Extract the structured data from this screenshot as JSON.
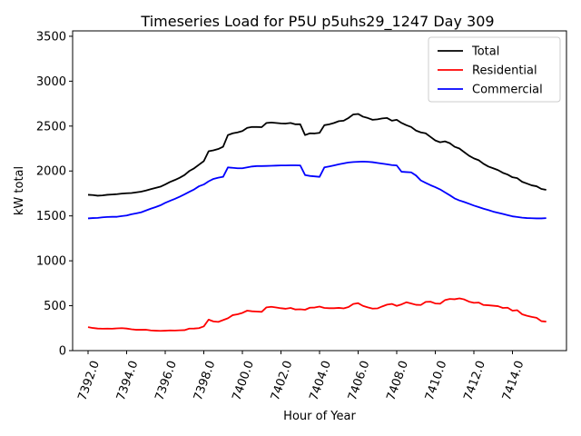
{
  "chart_data": {
    "type": "line",
    "title": "Timeseries Load for P5U p5uhs29_1247  Day 309",
    "xlabel": "Hour of Year",
    "ylabel": "kW total",
    "xlim": [
      7391.2,
      7416.8
    ],
    "ylim": [
      0,
      3560
    ],
    "x_ticks": [
      7392.0,
      7394.0,
      7396.0,
      7398.0,
      7400.0,
      7402.0,
      7404.0,
      7406.0,
      7408.0,
      7410.0,
      7412.0,
      7414.0
    ],
    "x_tick_labels": [
      "7392.0",
      "7394.0",
      "7396.0",
      "7398.0",
      "7400.0",
      "7402.0",
      "7404.0",
      "7406.0",
      "7408.0",
      "7410.0",
      "7412.0",
      "7414.0"
    ],
    "y_ticks": [
      0,
      500,
      1000,
      1500,
      2000,
      2500,
      3000,
      3500
    ],
    "y_tick_labels": [
      "0",
      "500",
      "1000",
      "1500",
      "2000",
      "2500",
      "3000",
      "3500"
    ],
    "legend_position": "top-right",
    "series": [
      {
        "name": "Total",
        "color": "#000000",
        "x": [
          7392.0,
          7392.25,
          7392.5,
          7392.75,
          7393.0,
          7393.25,
          7393.5,
          7393.75,
          7394.0,
          7394.25,
          7394.5,
          7394.75,
          7395.0,
          7395.25,
          7395.5,
          7395.75,
          7396.0,
          7396.25,
          7396.5,
          7396.75,
          7397.0,
          7397.25,
          7397.5,
          7397.75,
          7398.0,
          7398.25,
          7398.5,
          7398.75,
          7399.0,
          7399.25,
          7399.5,
          7399.75,
          7400.0,
          7400.25,
          7400.5,
          7400.75,
          7401.0,
          7401.25,
          7401.5,
          7401.75,
          7402.0,
          7402.25,
          7402.5,
          7402.75,
          7403.0,
          7403.25,
          7403.5,
          7403.75,
          7404.0,
          7404.25,
          7404.5,
          7404.75,
          7405.0,
          7405.25,
          7405.5,
          7405.75,
          7406.0,
          7406.25,
          7406.5,
          7406.75,
          7407.0,
          7407.25,
          7407.5,
          7407.75,
          7408.0,
          7408.25,
          7408.5,
          7408.75,
          7409.0,
          7409.25,
          7409.5,
          7409.75,
          7410.0,
          7410.25,
          7410.5,
          7410.75,
          7411.0,
          7411.25,
          7411.5,
          7411.75,
          7412.0,
          7412.25,
          7412.5,
          7412.75,
          7413.0,
          7413.25,
          7413.5,
          7413.75,
          7414.0,
          7414.25,
          7414.5,
          7414.75,
          7415.0,
          7415.25,
          7415.5,
          7415.75
        ],
        "values": [
          1735,
          1732,
          1725,
          1728,
          1735,
          1738,
          1742,
          1748,
          1752,
          1755,
          1762,
          1770,
          1782,
          1798,
          1812,
          1825,
          1850,
          1878,
          1900,
          1925,
          1955,
          2000,
          2030,
          2070,
          2110,
          2220,
          2230,
          2245,
          2270,
          2400,
          2420,
          2430,
          2445,
          2480,
          2490,
          2490,
          2488,
          2535,
          2540,
          2535,
          2530,
          2528,
          2535,
          2520,
          2520,
          2400,
          2420,
          2418,
          2425,
          2510,
          2520,
          2535,
          2555,
          2560,
          2590,
          2630,
          2635,
          2605,
          2590,
          2570,
          2575,
          2585,
          2590,
          2560,
          2570,
          2535,
          2510,
          2490,
          2450,
          2430,
          2420,
          2380,
          2340,
          2320,
          2330,
          2310,
          2270,
          2250,
          2210,
          2170,
          2140,
          2120,
          2080,
          2050,
          2030,
          2010,
          1980,
          1960,
          1930,
          1920,
          1880,
          1860,
          1840,
          1830,
          1800,
          1790
        ]
      },
      {
        "name": "Residential",
        "color": "#ff0000",
        "x": [
          7392.0,
          7392.25,
          7392.5,
          7392.75,
          7393.0,
          7393.25,
          7393.5,
          7393.75,
          7394.0,
          7394.25,
          7394.5,
          7394.75,
          7395.0,
          7395.25,
          7395.5,
          7395.75,
          7396.0,
          7396.25,
          7396.5,
          7396.75,
          7397.0,
          7397.25,
          7397.5,
          7397.75,
          7398.0,
          7398.25,
          7398.5,
          7398.75,
          7399.0,
          7399.25,
          7399.5,
          7399.75,
          7400.0,
          7400.25,
          7400.5,
          7400.75,
          7401.0,
          7401.25,
          7401.5,
          7401.75,
          7402.0,
          7402.25,
          7402.5,
          7402.75,
          7403.0,
          7403.25,
          7403.5,
          7403.75,
          7404.0,
          7404.25,
          7404.5,
          7404.75,
          7405.0,
          7405.25,
          7405.5,
          7405.75,
          7406.0,
          7406.25,
          7406.5,
          7406.75,
          7407.0,
          7407.25,
          7407.5,
          7407.75,
          7408.0,
          7408.25,
          7408.5,
          7408.75,
          7409.0,
          7409.25,
          7409.5,
          7409.75,
          7410.0,
          7410.25,
          7410.5,
          7410.75,
          7411.0,
          7411.25,
          7411.5,
          7411.75,
          7412.0,
          7412.25,
          7412.5,
          7412.75,
          7413.0,
          7413.25,
          7413.5,
          7413.75,
          7414.0,
          7414.25,
          7414.5,
          7414.75,
          7415.0,
          7415.25,
          7415.5,
          7415.75
        ],
        "values": [
          262,
          252,
          246,
          244,
          245,
          244,
          248,
          250,
          246,
          238,
          232,
          232,
          233,
          225,
          222,
          220,
          222,
          225,
          224,
          226,
          228,
          245,
          246,
          250,
          270,
          345,
          325,
          320,
          340,
          360,
          395,
          405,
          420,
          445,
          438,
          435,
          432,
          482,
          488,
          480,
          472,
          466,
          475,
          458,
          460,
          455,
          478,
          480,
          490,
          475,
          472,
          472,
          476,
          470,
          485,
          520,
          528,
          498,
          482,
          468,
          470,
          492,
          512,
          520,
          498,
          515,
          538,
          525,
          510,
          508,
          542,
          545,
          525,
          522,
          562,
          575,
          572,
          582,
          570,
          545,
          532,
          535,
          508,
          505,
          500,
          495,
          475,
          478,
          445,
          450,
          405,
          388,
          375,
          365,
          328,
          323
        ]
      },
      {
        "name": "Commercial",
        "color": "#0000ff",
        "x": [
          7392.0,
          7392.25,
          7392.5,
          7392.75,
          7393.0,
          7393.25,
          7393.5,
          7393.75,
          7394.0,
          7394.25,
          7394.5,
          7394.75,
          7395.0,
          7395.25,
          7395.5,
          7395.75,
          7396.0,
          7396.25,
          7396.5,
          7396.75,
          7397.0,
          7397.25,
          7397.5,
          7397.75,
          7398.0,
          7398.25,
          7398.5,
          7398.75,
          7399.0,
          7399.25,
          7399.5,
          7399.75,
          7400.0,
          7400.25,
          7400.5,
          7400.75,
          7401.0,
          7401.25,
          7401.5,
          7401.75,
          7402.0,
          7402.25,
          7402.5,
          7402.75,
          7403.0,
          7403.25,
          7403.5,
          7403.75,
          7404.0,
          7404.25,
          7404.5,
          7404.75,
          7405.0,
          7405.25,
          7405.5,
          7405.75,
          7406.0,
          7406.25,
          7406.5,
          7406.75,
          7407.0,
          7407.25,
          7407.5,
          7407.75,
          7408.0,
          7408.25,
          7408.5,
          7408.75,
          7409.0,
          7409.25,
          7409.5,
          7409.75,
          7410.0,
          7410.25,
          7410.5,
          7410.75,
          7411.0,
          7411.25,
          7411.5,
          7411.75,
          7412.0,
          7412.25,
          7412.5,
          7412.75,
          7413.0,
          7413.25,
          7413.5,
          7413.75,
          7414.0,
          7414.25,
          7414.5,
          7414.75,
          7415.0,
          7415.25,
          7415.5,
          7415.75
        ],
        "values": [
          1472,
          1476,
          1478,
          1484,
          1488,
          1490,
          1490,
          1498,
          1504,
          1518,
          1528,
          1540,
          1560,
          1580,
          1598,
          1618,
          1645,
          1668,
          1690,
          1714,
          1740,
          1768,
          1795,
          1830,
          1850,
          1885,
          1912,
          1925,
          1935,
          2040,
          2035,
          2030,
          2030,
          2040,
          2050,
          2055,
          2055,
          2056,
          2058,
          2060,
          2062,
          2062,
          2063,
          2063,
          2062,
          1955,
          1945,
          1940,
          1935,
          2040,
          2050,
          2062,
          2075,
          2085,
          2095,
          2100,
          2102,
          2105,
          2102,
          2098,
          2090,
          2082,
          2075,
          2066,
          2062,
          1992,
          1988,
          1985,
          1950,
          1895,
          1868,
          1842,
          1820,
          1795,
          1762,
          1730,
          1695,
          1672,
          1655,
          1635,
          1615,
          1598,
          1580,
          1565,
          1548,
          1535,
          1522,
          1508,
          1495,
          1488,
          1480,
          1476,
          1474,
          1472,
          1472,
          1475
        ]
      }
    ]
  }
}
